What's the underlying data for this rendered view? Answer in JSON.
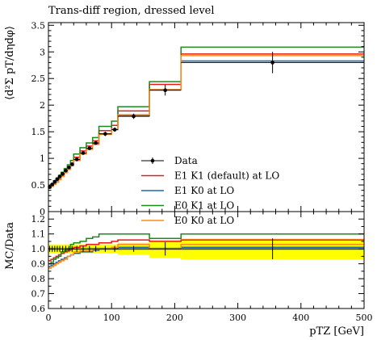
{
  "chart_data": [
    {
      "type": "line",
      "panel": "main",
      "title": "Trans-diff region, dressed level",
      "ylabel": "⟨d²Σ pT/dηdφ⟩",
      "xlim": [
        0,
        500
      ],
      "ylim": [
        0,
        3.55
      ],
      "yticks": [
        0,
        0.5,
        1,
        1.5,
        2,
        2.5,
        3,
        3.5
      ],
      "ytick_labels": [
        "0",
        "0.5",
        "1",
        "1.5",
        "2",
        "2.5",
        "3",
        "3.5"
      ],
      "bin_edges": [
        0,
        4,
        8,
        12,
        16,
        20,
        25,
        30,
        35,
        40,
        50,
        60,
        70,
        80,
        100,
        110,
        160,
        210,
        500
      ],
      "data_points": {
        "name": "Data",
        "x": [
          2,
          6,
          10,
          14,
          18,
          22.5,
          27.5,
          32.5,
          37.5,
          45,
          55,
          65,
          75,
          90,
          105,
          135,
          185,
          355
        ],
        "y": [
          0.46,
          0.51,
          0.56,
          0.61,
          0.66,
          0.71,
          0.77,
          0.83,
          0.89,
          0.98,
          1.1,
          1.19,
          1.29,
          1.46,
          1.54,
          1.79,
          2.28,
          2.8
        ],
        "yerr": [
          0.02,
          0.02,
          0.02,
          0.02,
          0.02,
          0.02,
          0.02,
          0.02,
          0.02,
          0.03,
          0.03,
          0.03,
          0.03,
          0.04,
          0.04,
          0.05,
          0.1,
          0.2
        ],
        "color": "#000000"
      },
      "series": [
        {
          "name": "E1 K1 (default) at LO",
          "color": "#e41a1c",
          "values": [
            0.46,
            0.5,
            0.55,
            0.6,
            0.65,
            0.71,
            0.78,
            0.84,
            0.91,
            1.02,
            1.14,
            1.23,
            1.33,
            1.52,
            1.62,
            1.89,
            2.39,
            2.96
          ]
        },
        {
          "name": "E1 K0 at LO",
          "color": "#2166ac",
          "values": [
            0.45,
            0.48,
            0.52,
            0.56,
            0.61,
            0.67,
            0.74,
            0.8,
            0.87,
            0.97,
            1.08,
            1.17,
            1.27,
            1.46,
            1.54,
            1.8,
            2.29,
            2.83
          ]
        },
        {
          "name": "E0 K1 at LO",
          "color": "#1b8a1b",
          "values": [
            0.47,
            0.52,
            0.58,
            0.63,
            0.68,
            0.74,
            0.81,
            0.88,
            0.96,
            1.08,
            1.2,
            1.29,
            1.39,
            1.6,
            1.7,
            1.97,
            2.44,
            3.09
          ]
        },
        {
          "name": "E0 K0 at LO",
          "color": "#ff8c1a",
          "values": [
            0.44,
            0.47,
            0.51,
            0.55,
            0.6,
            0.66,
            0.73,
            0.79,
            0.86,
            0.96,
            1.08,
            1.17,
            1.26,
            1.45,
            1.55,
            1.82,
            2.29,
            2.93
          ]
        }
      ],
      "legend": {
        "placement": "center-right",
        "entries": [
          "Data",
          "E1 K1 (default) at LO",
          "E1 K0 at LO",
          "E0 K1 at LO",
          "E0 K0 at LO"
        ]
      }
    },
    {
      "type": "line",
      "panel": "ratio",
      "ylabel": "MC/Data",
      "xlabel": "pTZ [GeV]",
      "xlim": [
        0,
        500
      ],
      "ylim": [
        0.6,
        1.25
      ],
      "xticks": [
        0,
        100,
        200,
        300,
        400,
        500
      ],
      "xtick_labels": [
        "0",
        "100",
        "200",
        "300",
        "400",
        "500"
      ],
      "yticks": [
        0.6,
        0.7,
        0.8,
        0.9,
        1.0,
        1.1,
        1.2
      ],
      "ytick_labels": [
        "0.6",
        "0.7",
        "0.8",
        "0.9",
        "1.0",
        "1.1",
        "1.2"
      ],
      "band": {
        "yellow_lo": [
          0.97,
          0.97,
          0.97,
          0.97,
          0.97,
          0.97,
          0.97,
          0.97,
          0.97,
          0.97,
          0.97,
          0.97,
          0.97,
          0.97,
          0.97,
          0.96,
          0.94,
          0.93
        ],
        "yellow_hi": [
          1.03,
          1.03,
          1.03,
          1.03,
          1.03,
          1.03,
          1.03,
          1.03,
          1.03,
          1.03,
          1.03,
          1.03,
          1.03,
          1.03,
          1.03,
          1.04,
          1.06,
          1.07
        ],
        "green_lo": [
          0.99,
          0.99,
          0.99,
          0.99,
          0.99,
          0.99,
          0.99,
          0.99,
          0.99,
          0.99,
          0.99,
          0.99,
          0.99,
          0.99,
          0.99,
          0.99,
          0.99,
          0.99
        ],
        "green_hi": [
          1.01,
          1.01,
          1.01,
          1.01,
          1.01,
          1.01,
          1.01,
          1.01,
          1.01,
          1.01,
          1.01,
          1.01,
          1.01,
          1.01,
          1.01,
          1.01,
          1.01,
          1.01
        ],
        "yellow_color": "#ffff00",
        "green_color": "#b5e61d"
      },
      "data_points": {
        "x": [
          2,
          6,
          10,
          14,
          18,
          22.5,
          27.5,
          32.5,
          37.5,
          45,
          55,
          65,
          75,
          90,
          105,
          135,
          185,
          355
        ],
        "y": [
          1,
          1,
          1,
          1,
          1,
          1,
          1,
          1,
          1,
          1,
          1,
          1,
          1,
          1,
          1,
          1,
          1,
          1
        ],
        "yerr": [
          0.02,
          0.02,
          0.02,
          0.02,
          0.02,
          0.02,
          0.02,
          0.02,
          0.02,
          0.02,
          0.02,
          0.02,
          0.02,
          0.02,
          0.02,
          0.02,
          0.045,
          0.07
        ]
      },
      "series": [
        {
          "name": "E1 K1 (default) at LO",
          "color": "#e41a1c",
          "values": [
            0.92,
            0.93,
            0.94,
            0.95,
            0.96,
            0.97,
            0.98,
            0.99,
            1.0,
            1.01,
            1.02,
            1.03,
            1.03,
            1.04,
            1.05,
            1.06,
            1.05,
            1.06
          ]
        },
        {
          "name": "E1 K0 at LO",
          "color": "#2166ac",
          "values": [
            0.88,
            0.89,
            0.9,
            0.91,
            0.92,
            0.93,
            0.94,
            0.95,
            0.96,
            0.97,
            0.98,
            0.98,
            0.99,
            1.0,
            1.0,
            1.01,
            1.0,
            1.01
          ]
        },
        {
          "name": "E0 K1 at LO",
          "color": "#1b8a1b",
          "values": [
            0.9,
            0.91,
            0.93,
            0.94,
            0.95,
            0.98,
            0.99,
            1.0,
            1.03,
            1.04,
            1.05,
            1.07,
            1.08,
            1.1,
            1.1,
            1.1,
            1.07,
            1.1
          ]
        },
        {
          "name": "E0 K0 at LO",
          "color": "#ff8c1a",
          "values": [
            0.87,
            0.88,
            0.89,
            0.9,
            0.91,
            0.92,
            0.93,
            0.95,
            0.96,
            0.98,
            0.99,
            0.99,
            1.0,
            1.0,
            1.01,
            1.03,
            1.0,
            1.03
          ]
        }
      ]
    }
  ]
}
